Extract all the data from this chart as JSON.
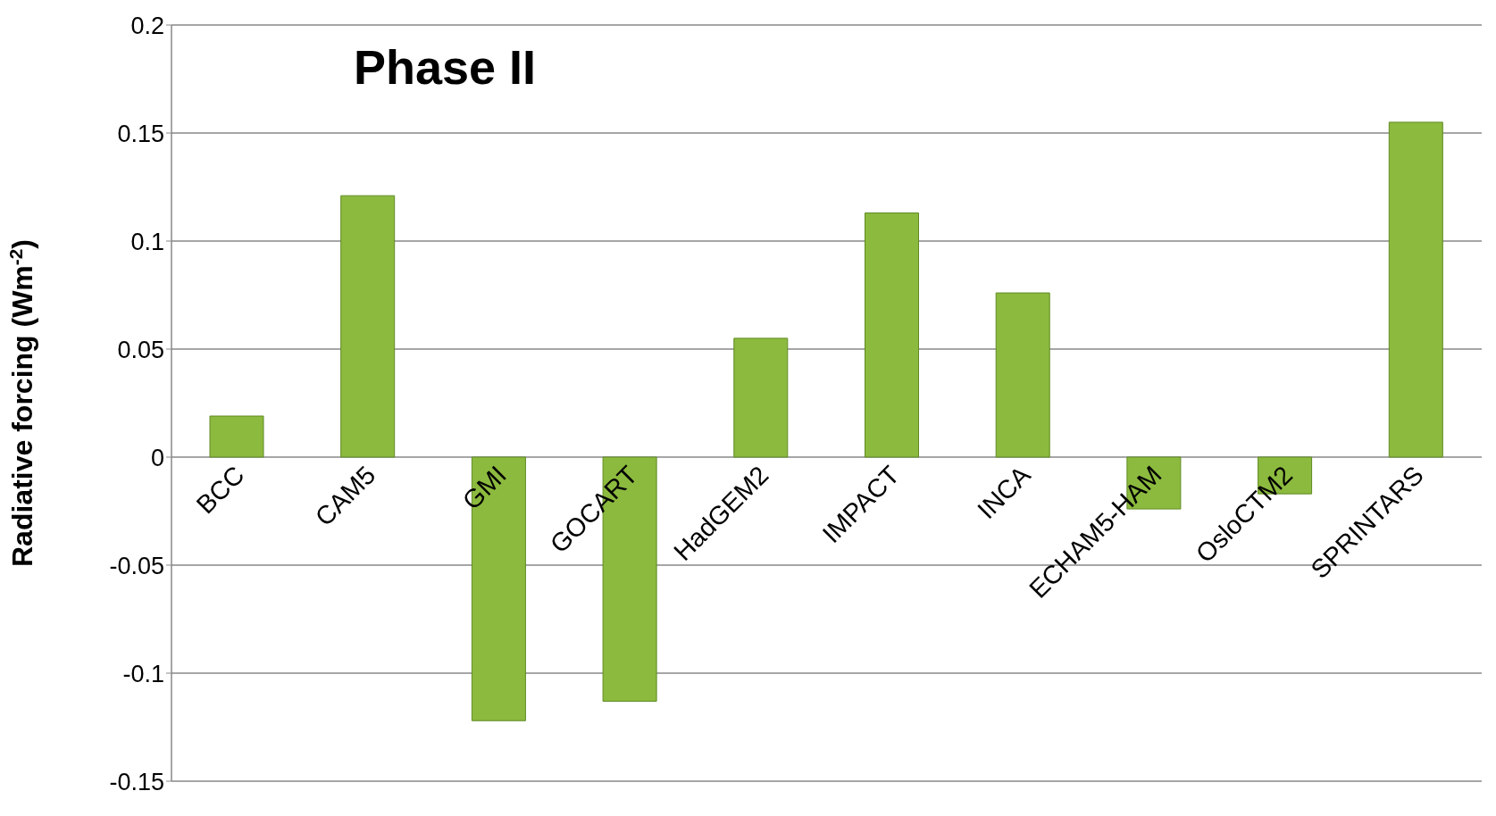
{
  "chart_data": {
    "type": "bar",
    "title": "Phase II",
    "ylabel": "Radiative forcing (Wm$^{-2}$)",
    "categories": [
      "BCC",
      "CAM5",
      "GMI",
      "GOCART",
      "HadGEM2",
      "IMPACT",
      "INCA",
      "ECHAM5-HAM",
      "OsloCTM2",
      "SPRINTARS"
    ],
    "values": [
      0.019,
      0.121,
      -0.122,
      -0.113,
      0.055,
      0.113,
      0.076,
      -0.024,
      -0.017,
      0.155
    ],
    "color": "#8cba3e",
    "ylim": [
      -0.15,
      0.2
    ],
    "yticks": [
      -0.15,
      -0.1,
      -0.05,
      0,
      0.05,
      0.1,
      0.15,
      0.2
    ],
    "grid": "y"
  }
}
